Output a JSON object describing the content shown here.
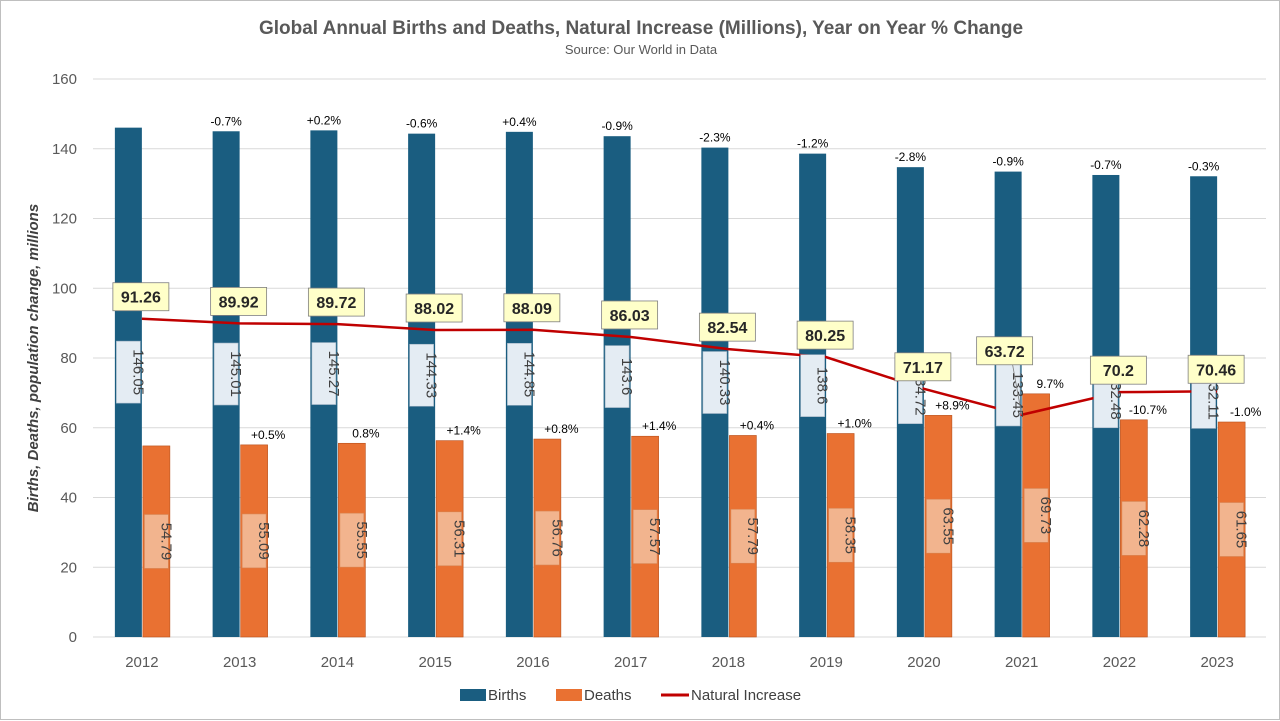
{
  "chart_data": {
    "type": "bar",
    "title": "Global Annual Births and Deaths, Natural Increase (Millions), Year on Year % Change",
    "subtitle": "Source: Our World in Data",
    "ylabel": "Births, Deaths, population change, millions",
    "ylim": [
      0,
      160
    ],
    "yticks": [
      0,
      20,
      40,
      60,
      80,
      100,
      120,
      140,
      160
    ],
    "grid": true,
    "legend_position": "bottom",
    "categories": [
      "2012",
      "2013",
      "2014",
      "2015",
      "2016",
      "2017",
      "2018",
      "2019",
      "2020",
      "2021",
      "2022",
      "2023"
    ],
    "series": [
      {
        "name": "Births",
        "type": "bar",
        "color": "#1a5d80",
        "values": [
          146.05,
          145.01,
          145.27,
          144.33,
          144.85,
          143.6,
          140.33,
          138.6,
          134.72,
          133.45,
          132.48,
          132.11
        ],
        "labels": [
          "146.05",
          "145.01",
          "145.27",
          "144.33",
          "144.85",
          "143.6",
          "140.33",
          "138.6",
          "134.72",
          "133.45",
          "132.48",
          "132.11"
        ],
        "yoy_change": [
          "",
          "-0.7%",
          "+0.2%",
          "-0.6%",
          "+0.4%",
          "-0.9%",
          "-2.3%",
          "-1.2%",
          "-2.8%",
          "-0.9%",
          "-0.7%",
          "-0.3%"
        ]
      },
      {
        "name": "Deaths",
        "type": "bar",
        "color": "#e97132",
        "values": [
          54.79,
          55.09,
          55.55,
          56.31,
          56.76,
          57.57,
          57.79,
          58.35,
          63.55,
          69.73,
          62.28,
          61.65
        ],
        "labels": [
          "54.79",
          "55.09",
          "55.55",
          "56.31",
          "56.76",
          "57.57",
          "57.79",
          "58.35",
          "63.55",
          "69.73",
          "62.28",
          "61.65"
        ],
        "yoy_change": [
          "",
          "+0.5%",
          "0.8%",
          "+1.4%",
          "+0.8%",
          "+1.4%",
          "+0.4%",
          "+1.0%",
          "+8.9%",
          "9.7%",
          "-10.7%",
          "-1.0%"
        ]
      },
      {
        "name": "Natural Increase",
        "type": "line",
        "color": "#c00000",
        "values": [
          91.26,
          89.92,
          89.72,
          88.02,
          88.09,
          86.03,
          82.54,
          80.25,
          71.17,
          63.72,
          70.2,
          70.46
        ],
        "labels": [
          "91.26",
          "89.92",
          "89.72",
          "88.02",
          "88.09",
          "86.03",
          "82.54",
          "80.25",
          "71.17",
          "63.72",
          "70.2",
          "70.46"
        ]
      }
    ]
  }
}
